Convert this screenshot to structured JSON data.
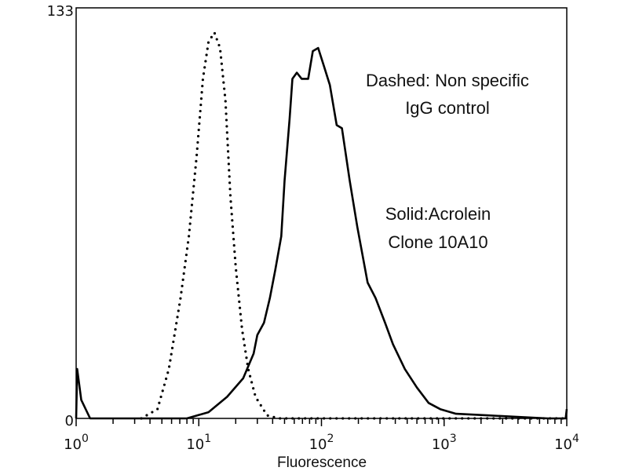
{
  "chart_data": {
    "type": "line",
    "title": "",
    "xlabel": "Fluorescence",
    "ylabel": "",
    "xscale": "log",
    "xlim": [
      1,
      10000
    ],
    "ylim": [
      0,
      133
    ],
    "x_tick_labels": [
      {
        "base": "10",
        "exp": "0"
      },
      {
        "base": "10",
        "exp": "1"
      },
      {
        "base": "10",
        "exp": "2"
      },
      {
        "base": "10",
        "exp": "3"
      },
      {
        "base": "10",
        "exp": "4"
      }
    ],
    "y_tick_labels": [
      "0",
      "133"
    ],
    "grid": false,
    "annotations": [
      {
        "lines": [
          "Dashed: Non specific",
          "IgG control"
        ]
      },
      {
        "lines": [
          "Solid:Acrolein",
          "Clone 10A10"
        ]
      }
    ],
    "series": [
      {
        "style": "dotted",
        "color": "#000000",
        "x": [
          3.4,
          4.6,
          5.7,
          7.1,
          8.3,
          9.6,
          10.8,
          12,
          13.4,
          14.9,
          16.5,
          18.1,
          20,
          22.5,
          25.3,
          29,
          36,
          45,
          10000
        ],
        "y": [
          0,
          3,
          16,
          39,
          59,
          85,
          110,
          122,
          125,
          120,
          103,
          72,
          49,
          29,
          16,
          7,
          1,
          0,
          0
        ]
      },
      {
        "style": "solid",
        "color": "#000000",
        "x": [
          1,
          1.02,
          1.1,
          1.3,
          8,
          12,
          17,
          23,
          28,
          30,
          34,
          38,
          42,
          47,
          50,
          55,
          58,
          63,
          69,
          78,
          85,
          94,
          105,
          117,
          133,
          147,
          170,
          196,
          238,
          276,
          330,
          383,
          478,
          600,
          748,
          930,
          1250,
          2240,
          7000,
          9800,
          10000
        ],
        "y": [
          0,
          16,
          6,
          0,
          0,
          2,
          7,
          13,
          21,
          27,
          31,
          39,
          48,
          59,
          77,
          97,
          110,
          112,
          110,
          110,
          119,
          120,
          114,
          108,
          95,
          94,
          77,
          62,
          44,
          39,
          31,
          24,
          16,
          10,
          5,
          3,
          1.5,
          1,
          0,
          0,
          3
        ]
      }
    ]
  }
}
